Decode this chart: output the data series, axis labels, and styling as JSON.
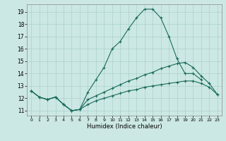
{
  "xlabel": "Humidex (Indice chaleur)",
  "background_color": "#cce8e4",
  "grid_color": "#aad0cc",
  "line_color": "#1a6b5a",
  "xlim": [
    -0.5,
    23.5
  ],
  "ylim": [
    10.6,
    19.6
  ],
  "yticks": [
    11,
    12,
    13,
    14,
    15,
    16,
    17,
    18,
    19
  ],
  "xticks": [
    0,
    1,
    2,
    3,
    4,
    5,
    6,
    7,
    8,
    9,
    10,
    11,
    12,
    13,
    14,
    15,
    16,
    17,
    18,
    19,
    20,
    21,
    22,
    23
  ],
  "line1_x": [
    0,
    1,
    2,
    3,
    4,
    5,
    6,
    7,
    8,
    9,
    10,
    11,
    12,
    13,
    14,
    15,
    16,
    17,
    18,
    19,
    20,
    21
  ],
  "line1_y": [
    12.6,
    12.1,
    11.9,
    12.1,
    11.5,
    11.0,
    11.1,
    12.5,
    13.5,
    14.5,
    16.0,
    16.6,
    17.6,
    18.5,
    19.2,
    19.2,
    18.5,
    17.0,
    15.2,
    14.0,
    14.0,
    13.5
  ],
  "line2_x": [
    0,
    1,
    2,
    3,
    4,
    5,
    6,
    7,
    8,
    9,
    10,
    11,
    12,
    13,
    14,
    15,
    16,
    17,
    18,
    19,
    20,
    21,
    22,
    23
  ],
  "line2_y": [
    12.6,
    12.1,
    11.9,
    12.1,
    11.5,
    11.0,
    11.1,
    11.9,
    12.2,
    12.5,
    12.8,
    13.1,
    13.4,
    13.6,
    13.9,
    14.1,
    14.4,
    14.6,
    14.8,
    14.9,
    14.5,
    13.8,
    13.2,
    12.3
  ],
  "line3_x": [
    0,
    1,
    2,
    3,
    4,
    5,
    6,
    7,
    8,
    9,
    10,
    11,
    12,
    13,
    14,
    15,
    16,
    17,
    18,
    19,
    20,
    21,
    22,
    23
  ],
  "line3_y": [
    12.6,
    12.1,
    11.9,
    12.1,
    11.5,
    11.0,
    11.1,
    11.5,
    11.8,
    12.0,
    12.2,
    12.4,
    12.6,
    12.7,
    12.9,
    13.0,
    13.1,
    13.2,
    13.3,
    13.4,
    13.4,
    13.2,
    12.9,
    12.3
  ]
}
